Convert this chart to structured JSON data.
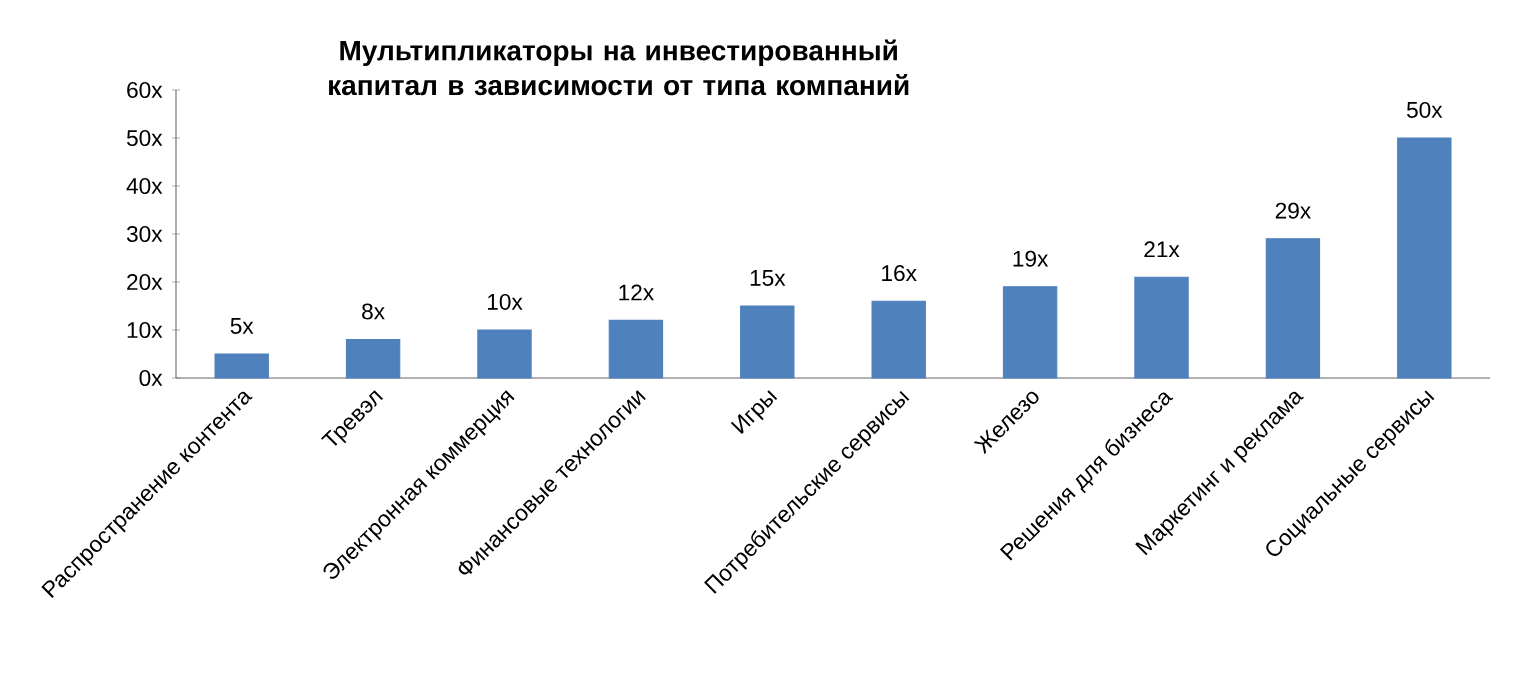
{
  "chart_data": {
    "type": "bar",
    "title": "Мультипликаторы на инвестированный капитал в зависимости от типа компаний",
    "categories": [
      "Распространение контента",
      "Тревэл",
      "Электронная коммерция",
      "Финансовые технологии",
      "Игры",
      "Потребительские сервисы",
      "Железо",
      "Решения для бизнеса",
      "Маркетинг и реклама",
      "Социальные сервисы"
    ],
    "values": [
      5,
      8,
      10,
      12,
      15,
      16,
      19,
      21,
      29,
      50
    ],
    "value_labels": [
      "5x",
      "8x",
      "10x",
      "12x",
      "15x",
      "16x",
      "19x",
      "21x",
      "29x",
      "50x"
    ],
    "color": "#4f81bd",
    "ylim": [
      0,
      60
    ],
    "yticks": [
      {
        "value": 0,
        "label": "0x"
      },
      {
        "value": 10,
        "label": "10x"
      },
      {
        "value": 20,
        "label": "20x"
      },
      {
        "value": 30,
        "label": "30x"
      },
      {
        "value": 40,
        "label": "40x"
      },
      {
        "value": 50,
        "label": "50x"
      },
      {
        "value": 60,
        "label": "60x"
      }
    ],
    "grid": false
  }
}
